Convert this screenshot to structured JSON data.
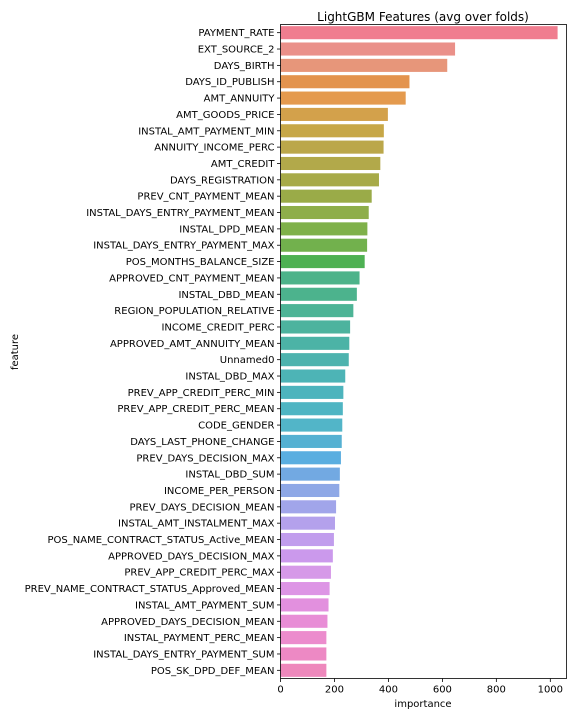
{
  "chart_data": {
    "type": "bar",
    "orientation": "horizontal",
    "title": "LightGBM Features (avg over folds)",
    "xlabel": "importance",
    "ylabel": "feature",
    "xlim": [
      0,
      1060
    ],
    "xticks": [
      0,
      200,
      400,
      600,
      800,
      1000
    ],
    "grid": false,
    "categories": [
      "PAYMENT_RATE",
      "EXT_SOURCE_2",
      "DAYS_BIRTH",
      "DAYS_ID_PUBLISH",
      "AMT_ANNUITY",
      "AMT_GOODS_PRICE",
      "INSTAL_AMT_PAYMENT_MIN",
      "ANNUITY_INCOME_PERC",
      "AMT_CREDIT",
      "DAYS_REGISTRATION",
      "PREV_CNT_PAYMENT_MEAN",
      "INSTAL_DAYS_ENTRY_PAYMENT_MEAN",
      "INSTAL_DPD_MEAN",
      "INSTAL_DAYS_ENTRY_PAYMENT_MAX",
      "POS_MONTHS_BALANCE_SIZE",
      "APPROVED_CNT_PAYMENT_MEAN",
      "INSTAL_DBD_MEAN",
      "REGION_POPULATION_RELATIVE",
      "INCOME_CREDIT_PERC",
      "APPROVED_AMT_ANNUITY_MEAN",
      "Unnamed0",
      "INSTAL_DBD_MAX",
      "PREV_APP_CREDIT_PERC_MIN",
      "PREV_APP_CREDIT_PERC_MEAN",
      "CODE_GENDER",
      "DAYS_LAST_PHONE_CHANGE",
      "PREV_DAYS_DECISION_MAX",
      "INSTAL_DBD_SUM",
      "INCOME_PER_PERSON",
      "PREV_DAYS_DECISION_MEAN",
      "INSTAL_AMT_INSTALMENT_MAX",
      "POS_NAME_CONTRACT_STATUS_Active_MEAN",
      "APPROVED_DAYS_DECISION_MAX",
      "PREV_APP_CREDIT_PERC_MAX",
      "PREV_NAME_CONTRACT_STATUS_Approved_MEAN",
      "INSTAL_AMT_PAYMENT_SUM",
      "APPROVED_DAYS_DECISION_MEAN",
      "INSTAL_PAYMENT_PERC_MEAN",
      "INSTAL_DAYS_ENTRY_PAYMENT_SUM",
      "POS_SK_DPD_DEF_MEAN"
    ],
    "values": [
      1027,
      647,
      618,
      478,
      464,
      398,
      383,
      382,
      370,
      365,
      338,
      327,
      322,
      321,
      312,
      293,
      283,
      270,
      258,
      255,
      253,
      240,
      233,
      231,
      229,
      227,
      224,
      220,
      218,
      206,
      202,
      198,
      194,
      187,
      182,
      178,
      174,
      170,
      170,
      170
    ],
    "colors": [
      "#f07d8f",
      "#ea9089",
      "#e7967a",
      "#e3934e",
      "#e49a4e",
      "#d3a14b",
      "#c7a747",
      "#bba74a",
      "#b2a94a",
      "#a7aa48",
      "#9aab48",
      "#8eae4a",
      "#7fb14a",
      "#72b14d",
      "#4eb153",
      "#4db38a",
      "#4cb38d",
      "#4db496",
      "#4db39e",
      "#4cb3a6",
      "#4db3ae",
      "#4db4b6",
      "#4db4bd",
      "#4fb5c3",
      "#52b5c8",
      "#55b1d2",
      "#5aaee0",
      "#72a9e2",
      "#8ea8e6",
      "#a1a5ea",
      "#b4a1ec",
      "#c19ded",
      "#cb99ec",
      "#d699e8",
      "#dd95e5",
      "#e290de",
      "#e88dd6",
      "#ec8ccd",
      "#ed89c4",
      "#ee88bc"
    ]
  }
}
